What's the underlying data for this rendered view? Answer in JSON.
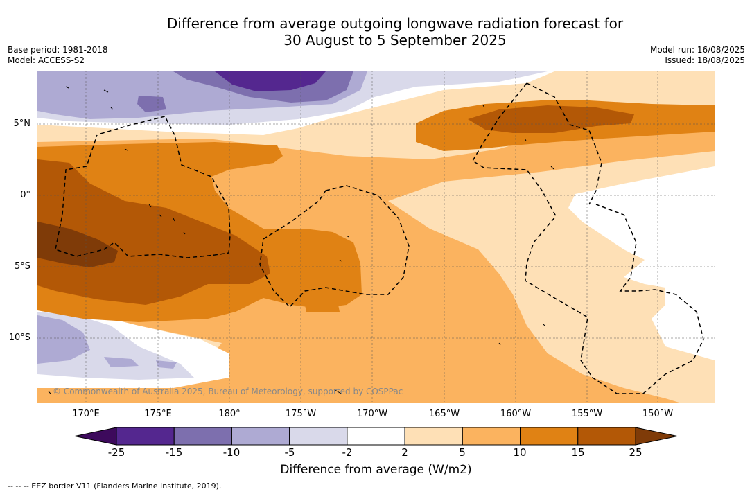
{
  "title": {
    "line1": "Difference from average outgoing longwave radiation forecast for",
    "line2": "30 August to 5 September 2025"
  },
  "meta_left": {
    "base_period": "Base period: 1981-2018",
    "model": "Model: ACCESS-S2"
  },
  "meta_right": {
    "model_run": "Model run: 16/08/2025",
    "issued": "Issued: 18/08/2025"
  },
  "lat_labels": [
    "5°N",
    "0°",
    "5°S",
    "10°S"
  ],
  "lon_labels": [
    "170°E",
    "175°E",
    "180°",
    "175°W",
    "170°W",
    "165°W",
    "160°W",
    "155°W",
    "150°W"
  ],
  "copyright": "© Commonwealth of Australia 2025, Bureau of Meteorology, supported by COSPPac",
  "colorbar": {
    "ticks": [
      "-25",
      "-15",
      "-10",
      "-5",
      "-2",
      "2",
      "5",
      "10",
      "15",
      "25"
    ],
    "title": "Difference from average (W/m2)",
    "colors": [
      "#3d0a5c",
      "#54278f",
      "#7d6fae",
      "#aeaad3",
      "#d9d9ea",
      "#ffffff",
      "#fee0b6",
      "#fbb35f",
      "#e08214",
      "#b35806",
      "#7f3b08"
    ]
  },
  "legend_note": "--  --  -- EEZ border V11 (Flanders Marine Institute, 2019).",
  "chart_data": {
    "type": "heatmap",
    "variable": "Difference from average outgoing longwave radiation",
    "units": "W/m2",
    "levels": [
      -25,
      -15,
      -10,
      -5,
      -2,
      2,
      5,
      10,
      15,
      25
    ],
    "lon_ticks": [
      "170°E",
      "175°E",
      "180°",
      "175°W",
      "170°W",
      "165°W",
      "160°W",
      "155°W",
      "150°W"
    ],
    "lat_ticks": [
      "5°N",
      "0°",
      "5°S",
      "10°S"
    ]
  }
}
